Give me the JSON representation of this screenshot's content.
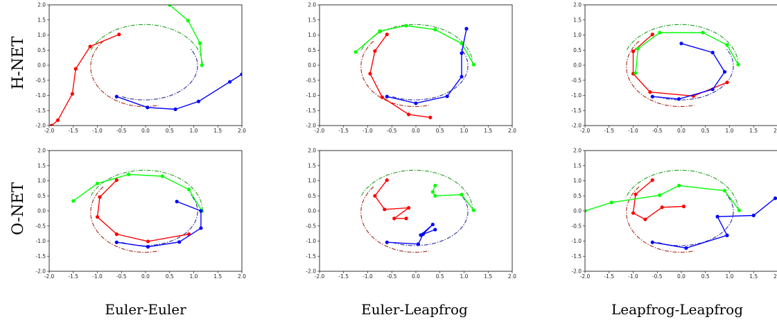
{
  "row_labels": [
    "H-NET",
    "O-NET"
  ],
  "col_labels": [
    "Euler-Euler",
    "Euler-Leapfrog",
    "Leapfrog-Leapfrog"
  ],
  "colors": {
    "body_red": "#ff0000",
    "body_green": "#00ff00",
    "body_blue": "#0000ff",
    "ref_red": "#a0261a",
    "ref_green": "#1f9e1f",
    "ref_blue": "#2a2aa0"
  },
  "chart_data": [
    {
      "type": "line",
      "row": "H-NET",
      "column": "Euler-Euler",
      "xlim": [
        -2.0,
        2.0
      ],
      "ylim": [
        -2.0,
        2.0
      ],
      "xticks": [
        "-2.0",
        "-1.5",
        "-1.0",
        "-0.5",
        "0.0",
        "0.5",
        "1.0",
        "1.5",
        "2.0"
      ],
      "yticks": [
        "-2.0",
        "-1.5",
        "-1.0",
        "-0.5",
        "0.0",
        "0.5",
        "1.0",
        "1.5",
        "2.0"
      ],
      "series": [
        {
          "color": "red",
          "points": [
            [
              -0.55,
              1.02
            ],
            [
              -1.15,
              0.62
            ],
            [
              -1.45,
              -0.12
            ],
            [
              -1.52,
              -0.95
            ],
            [
              -1.82,
              -1.82
            ],
            [
              -1.95,
              -2.0
            ]
          ]
        },
        {
          "color": "green",
          "points": [
            [
              0.5,
              2.0
            ],
            [
              0.88,
              1.48
            ],
            [
              1.13,
              0.73
            ],
            [
              1.17,
              0.0
            ]
          ]
        },
        {
          "color": "blue",
          "points": [
            [
              -0.6,
              -1.04
            ],
            [
              0.04,
              -1.4
            ],
            [
              0.62,
              -1.46
            ],
            [
              1.1,
              -1.2
            ],
            [
              1.75,
              -0.55
            ],
            [
              2.0,
              -0.3
            ]
          ]
        }
      ]
    },
    {
      "type": "line",
      "row": "H-NET",
      "column": "Euler-Leapfrog",
      "xlim": [
        -2.0,
        2.0
      ],
      "ylim": [
        -2.0,
        2.0
      ],
      "xticks": [
        "-2.0",
        "-1.5",
        "-1.0",
        "-0.5",
        "0.0",
        "0.5",
        "1.0",
        "1.5",
        "2.0"
      ],
      "yticks": [
        "-2.0",
        "-1.5",
        "-1.0",
        "-0.5",
        "0.0",
        "0.5",
        "1.0",
        "1.5",
        "2.0"
      ],
      "series": [
        {
          "color": "red",
          "points": [
            [
              -0.6,
              1.02
            ],
            [
              -0.85,
              0.47
            ],
            [
              -0.95,
              -0.28
            ],
            [
              -0.7,
              -1.06
            ],
            [
              -0.15,
              -1.63
            ],
            [
              0.3,
              -1.73
            ]
          ]
        },
        {
          "color": "green",
          "points": [
            [
              -1.25,
              0.44
            ],
            [
              -0.75,
              1.13
            ],
            [
              -0.2,
              1.31
            ],
            [
              0.4,
              1.18
            ],
            [
              0.95,
              0.72
            ],
            [
              1.2,
              0.02
            ]
          ]
        },
        {
          "color": "blue",
          "points": [
            [
              -0.6,
              -1.04
            ],
            [
              0.0,
              -1.26
            ],
            [
              0.65,
              -1.03
            ],
            [
              0.95,
              -0.38
            ],
            [
              0.95,
              0.4
            ],
            [
              1.05,
              1.21
            ]
          ]
        }
      ]
    },
    {
      "type": "line",
      "row": "H-NET",
      "column": "Leapfrog-Leapfrog",
      "xlim": [
        -2.0,
        2.0
      ],
      "ylim": [
        -2.0,
        2.0
      ],
      "xticks": [
        "-2.0",
        "-1.5",
        "-1.0",
        "-0.5",
        "0.0",
        "0.5",
        "1.0",
        "1.5",
        "2.0"
      ],
      "yticks": [
        "-2.0",
        "-1.5",
        "-1.0",
        "-0.5",
        "0.0",
        "0.5",
        "1.0",
        "1.5",
        "2.0"
      ],
      "series": [
        {
          "color": "red",
          "points": [
            [
              -0.6,
              1.02
            ],
            [
              -1.0,
              0.46
            ],
            [
              -1.0,
              -0.28
            ],
            [
              -0.65,
              -0.89
            ],
            [
              0.25,
              -1.02
            ],
            [
              0.95,
              -0.57
            ]
          ]
        },
        {
          "color": "green",
          "points": [
            [
              -0.95,
              -0.26
            ],
            [
              -0.9,
              0.55
            ],
            [
              -0.45,
              1.08
            ],
            [
              0.45,
              1.08
            ],
            [
              0.95,
              0.67
            ],
            [
              1.18,
              0.02
            ]
          ]
        },
        {
          "color": "blue",
          "points": [
            [
              -0.6,
              -1.04
            ],
            [
              -0.05,
              -1.12
            ],
            [
              0.65,
              -0.8
            ],
            [
              0.9,
              -0.22
            ],
            [
              0.65,
              0.42
            ],
            [
              0.0,
              0.72
            ]
          ]
        }
      ]
    },
    {
      "type": "line",
      "row": "O-NET",
      "column": "Euler-Euler",
      "xlim": [
        -2.0,
        2.0
      ],
      "ylim": [
        -2.0,
        2.0
      ],
      "xticks": [
        "-2.0",
        "-1.5",
        "-1.0",
        "-0.5",
        "0.0",
        "0.5",
        "1.0",
        "1.5",
        "2.0"
      ],
      "yticks": [
        "-2.0",
        "-1.5",
        "-1.0",
        "-0.5",
        "0.0",
        "0.5",
        "1.0",
        "1.5",
        "2.0"
      ],
      "series": [
        {
          "color": "red",
          "points": [
            [
              -0.6,
              1.02
            ],
            [
              -0.95,
              0.46
            ],
            [
              -1.0,
              -0.2
            ],
            [
              -0.6,
              -0.77
            ],
            [
              0.05,
              -1.01
            ],
            [
              0.9,
              -0.77
            ]
          ]
        },
        {
          "color": "green",
          "points": [
            [
              -1.5,
              0.33
            ],
            [
              -1.0,
              0.91
            ],
            [
              -0.35,
              1.21
            ],
            [
              0.35,
              1.15
            ],
            [
              0.9,
              0.71
            ],
            [
              1.17,
              0.0
            ]
          ]
        },
        {
          "color": "blue",
          "points": [
            [
              -0.6,
              -1.04
            ],
            [
              0.05,
              -1.19
            ],
            [
              0.7,
              -1.03
            ],
            [
              1.15,
              -0.57
            ],
            [
              1.15,
              0.0
            ],
            [
              0.65,
              0.31
            ]
          ]
        }
      ]
    },
    {
      "type": "line",
      "row": "O-NET",
      "column": "Euler-Leapfrog",
      "xlim": [
        -2.0,
        2.0
      ],
      "ylim": [
        -2.0,
        2.0
      ],
      "xticks": [
        "-2.0",
        "-1.5",
        "-1.0",
        "-0.5",
        "0.0",
        "0.5",
        "1.0",
        "1.5",
        "2.0"
      ],
      "yticks": [
        "-2.0",
        "-1.5",
        "-1.0",
        "-0.5",
        "0.0",
        "0.5",
        "1.0",
        "1.5",
        "2.0"
      ],
      "series": [
        {
          "color": "red",
          "points": [
            [
              -0.6,
              1.02
            ],
            [
              -0.85,
              0.5
            ],
            [
              -0.65,
              0.05
            ],
            [
              -0.15,
              0.1
            ],
            [
              -0.45,
              -0.25
            ],
            [
              -0.2,
              -0.25
            ]
          ]
        },
        {
          "color": "green",
          "points": [
            [
              0.4,
              0.84
            ],
            [
              0.35,
              0.63
            ],
            [
              0.4,
              0.5
            ],
            [
              0.95,
              0.54
            ],
            [
              1.2,
              0.02
            ]
          ]
        },
        {
          "color": "blue",
          "points": [
            [
              -0.6,
              -1.04
            ],
            [
              0.05,
              -1.1
            ],
            [
              0.15,
              -0.77
            ],
            [
              0.35,
              -0.45
            ],
            [
              0.1,
              -0.8
            ],
            [
              0.4,
              -0.62
            ]
          ]
        }
      ]
    },
    {
      "type": "line",
      "row": "O-NET",
      "column": "Leapfrog-Leapfrog",
      "xlim": [
        -2.0,
        2.0
      ],
      "ylim": [
        -2.0,
        2.0
      ],
      "xticks": [
        "-2.0",
        "-1.5",
        "-1.0",
        "-0.5",
        "0.0",
        "0.5",
        "1.0",
        "1.5",
        "2.0"
      ],
      "yticks": [
        "-2.0",
        "-1.5",
        "-1.0",
        "-0.5",
        "0.0",
        "0.5",
        "1.0",
        "1.5",
        "2.0"
      ],
      "series": [
        {
          "color": "red",
          "points": [
            [
              -0.6,
              1.02
            ],
            [
              -0.95,
              0.55
            ],
            [
              -1.0,
              -0.07
            ],
            [
              -0.75,
              -0.28
            ],
            [
              -0.4,
              0.12
            ],
            [
              0.05,
              0.15
            ]
          ]
        },
        {
          "color": "green",
          "points": [
            [
              -2.0,
              0.0
            ],
            [
              -1.45,
              0.28
            ],
            [
              -0.45,
              0.52
            ],
            [
              -0.05,
              0.84
            ],
            [
              0.9,
              0.67
            ],
            [
              1.2,
              0.02
            ]
          ]
        },
        {
          "color": "blue",
          "points": [
            [
              -0.6,
              -1.04
            ],
            [
              0.1,
              -1.23
            ],
            [
              0.95,
              -0.81
            ],
            [
              0.75,
              -0.19
            ],
            [
              1.5,
              -0.15
            ],
            [
              1.95,
              0.42
            ]
          ]
        }
      ]
    }
  ]
}
